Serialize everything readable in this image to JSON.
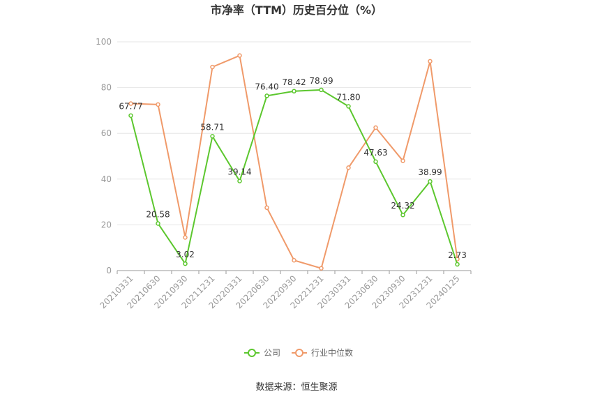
{
  "chart_data": {
    "type": "line",
    "title": "市净率（TTM）历史百分位（%）",
    "categories": [
      "20210331",
      "20210630",
      "20210930",
      "20211231",
      "20220331",
      "20220630",
      "20220930",
      "20221231",
      "20230331",
      "20230630",
      "20230930",
      "20231231",
      "20240125"
    ],
    "ylim": [
      0,
      100
    ],
    "yticks": [
      0,
      20,
      40,
      60,
      80,
      100
    ],
    "grid": true,
    "legend_position": "bottom",
    "series": [
      {
        "name": "公司",
        "color": "#5cc72e",
        "values": [
          67.77,
          20.58,
          3.02,
          58.71,
          39.14,
          76.4,
          78.42,
          78.99,
          71.8,
          47.63,
          24.32,
          38.99,
          2.73
        ],
        "labels": [
          "67.77",
          "20.58",
          "3.02",
          "58.71",
          "39.14",
          "76.40",
          "78.42",
          "78.99",
          "71.80",
          "47.63",
          "24.32",
          "38.99",
          "2.73"
        ]
      },
      {
        "name": "行业中位数",
        "color": "#f09a6a",
        "values": [
          73,
          72.6,
          14.5,
          89,
          94,
          27.5,
          4.5,
          1,
          45,
          62.5,
          48,
          91.5,
          5
        ]
      }
    ]
  },
  "source": "数据来源：恒生聚源"
}
